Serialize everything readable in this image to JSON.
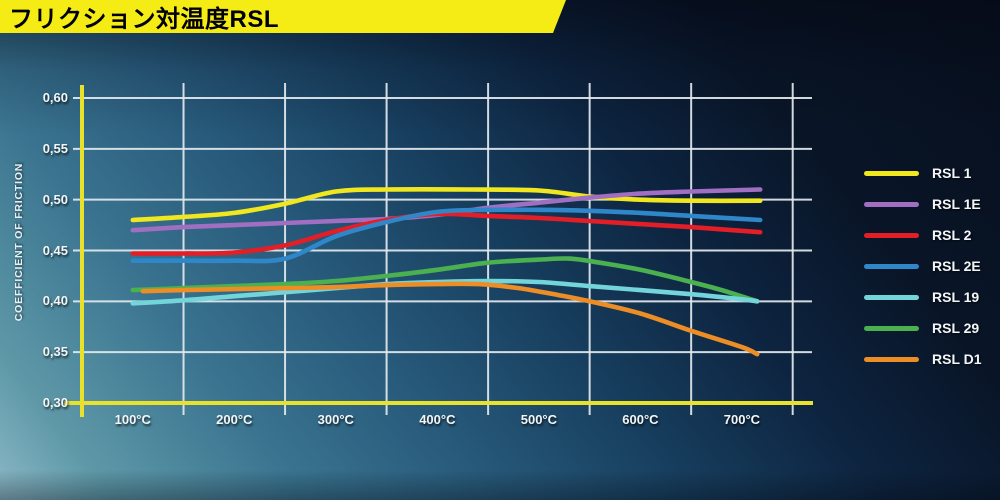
{
  "header": {
    "title": "フリクション対温度RSL",
    "banner_color": "#f6ec15"
  },
  "colors": {
    "axis_yellow": "#e8e22c",
    "grid_white": "#e3eaee",
    "label_white": "#f2f6f8"
  },
  "chart_data": {
    "type": "line",
    "title": "フリクション対温度RSL",
    "xlabel": "",
    "ylabel": "COEFFICIENT OF FRICTION",
    "x_unit": "°C",
    "xlim": [
      50,
      770
    ],
    "ylim": [
      0.3,
      0.6
    ],
    "grid": true,
    "legend_position": "right",
    "x_tick_values": [
      100,
      200,
      300,
      400,
      500,
      600,
      700
    ],
    "x_tick_labels": [
      "100°C",
      "200°C",
      "300°C",
      "400°C",
      "500°C",
      "600°C",
      "700°C"
    ],
    "x_grid_values": [
      150,
      250,
      350,
      450,
      550,
      650,
      750
    ],
    "y_tick_values": [
      0.6,
      0.55,
      0.5,
      0.45,
      0.4,
      0.35,
      0.3
    ],
    "y_tick_labels": [
      "0,60",
      "0,55",
      "0,50",
      "0,45",
      "0,40",
      "0,35",
      "0,30"
    ],
    "series": [
      {
        "name": "RSL 1",
        "color": "#f0e71f",
        "points": [
          [
            100,
            0.48
          ],
          [
            150,
            0.483
          ],
          [
            200,
            0.487
          ],
          [
            250,
            0.496
          ],
          [
            300,
            0.508
          ],
          [
            350,
            0.51
          ],
          [
            430,
            0.51
          ],
          [
            500,
            0.509
          ],
          [
            550,
            0.503
          ],
          [
            600,
            0.5
          ],
          [
            650,
            0.499
          ],
          [
            718,
            0.499
          ]
        ]
      },
      {
        "name": "RSL 1E",
        "color": "#a06fc2",
        "points": [
          [
            100,
            0.47
          ],
          [
            150,
            0.473
          ],
          [
            200,
            0.475
          ],
          [
            250,
            0.477
          ],
          [
            300,
            0.479
          ],
          [
            350,
            0.481
          ],
          [
            400,
            0.485
          ],
          [
            450,
            0.492
          ],
          [
            500,
            0.497
          ],
          [
            550,
            0.502
          ],
          [
            600,
            0.506
          ],
          [
            650,
            0.508
          ],
          [
            718,
            0.51
          ]
        ]
      },
      {
        "name": "RSL 2",
        "color": "#e41e26",
        "points": [
          [
            100,
            0.447
          ],
          [
            150,
            0.447
          ],
          [
            200,
            0.448
          ],
          [
            250,
            0.455
          ],
          [
            300,
            0.469
          ],
          [
            350,
            0.48
          ],
          [
            400,
            0.486
          ],
          [
            450,
            0.484
          ],
          [
            500,
            0.482
          ],
          [
            550,
            0.479
          ],
          [
            600,
            0.476
          ],
          [
            650,
            0.473
          ],
          [
            718,
            0.468
          ]
        ]
      },
      {
        "name": "RSL 2E",
        "color": "#2f87c9",
        "points": [
          [
            100,
            0.44
          ],
          [
            150,
            0.44
          ],
          [
            200,
            0.44
          ],
          [
            250,
            0.442
          ],
          [
            300,
            0.464
          ],
          [
            350,
            0.478
          ],
          [
            400,
            0.488
          ],
          [
            450,
            0.49
          ],
          [
            500,
            0.49
          ],
          [
            550,
            0.489
          ],
          [
            600,
            0.487
          ],
          [
            650,
            0.484
          ],
          [
            718,
            0.48
          ]
        ]
      },
      {
        "name": "RSL 19",
        "color": "#73d5da",
        "points": [
          [
            100,
            0.398
          ],
          [
            150,
            0.401
          ],
          [
            200,
            0.405
          ],
          [
            250,
            0.409
          ],
          [
            300,
            0.413
          ],
          [
            350,
            0.417
          ],
          [
            400,
            0.419
          ],
          [
            450,
            0.42
          ],
          [
            500,
            0.419
          ],
          [
            550,
            0.415
          ],
          [
            600,
            0.411
          ],
          [
            650,
            0.407
          ],
          [
            700,
            0.402
          ],
          [
            715,
            0.4
          ]
        ]
      },
      {
        "name": "RSL 29",
        "color": "#4bb050",
        "points": [
          [
            100,
            0.411
          ],
          [
            150,
            0.413
          ],
          [
            200,
            0.415
          ],
          [
            250,
            0.417
          ],
          [
            300,
            0.42
          ],
          [
            350,
            0.425
          ],
          [
            400,
            0.431
          ],
          [
            450,
            0.438
          ],
          [
            500,
            0.441
          ],
          [
            530,
            0.442
          ],
          [
            560,
            0.438
          ],
          [
            600,
            0.431
          ],
          [
            650,
            0.419
          ],
          [
            680,
            0.411
          ],
          [
            715,
            0.4
          ]
        ]
      },
      {
        "name": "RSL D1",
        "color": "#ec8d26",
        "points": [
          [
            110,
            0.41
          ],
          [
            150,
            0.411
          ],
          [
            200,
            0.412
          ],
          [
            250,
            0.413
          ],
          [
            300,
            0.414
          ],
          [
            350,
            0.416
          ],
          [
            400,
            0.417
          ],
          [
            440,
            0.417
          ],
          [
            480,
            0.413
          ],
          [
            520,
            0.406
          ],
          [
            550,
            0.4
          ],
          [
            600,
            0.388
          ],
          [
            650,
            0.371
          ],
          [
            700,
            0.355
          ],
          [
            715,
            0.348
          ]
        ]
      }
    ]
  }
}
